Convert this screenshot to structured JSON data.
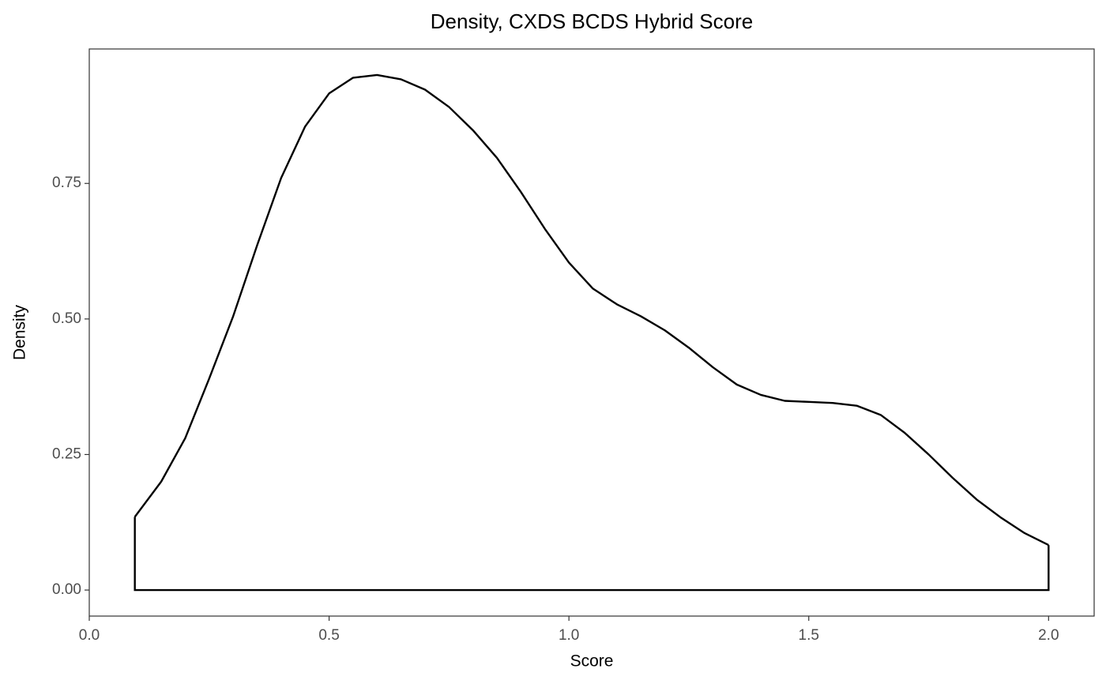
{
  "chart_data": {
    "type": "density",
    "title": "Density, CXDS BCDS Hybrid Score",
    "x_label": "Score",
    "y_label": "Density",
    "x": [
      0.095,
      0.15,
      0.2,
      0.25,
      0.3,
      0.35,
      0.4,
      0.45,
      0.5,
      0.55,
      0.6,
      0.65,
      0.7,
      0.75,
      0.8,
      0.85,
      0.9,
      0.95,
      1.0,
      1.05,
      1.1,
      1.15,
      1.2,
      1.25,
      1.3,
      1.35,
      1.4,
      1.45,
      1.5,
      1.55,
      1.6,
      1.65,
      1.7,
      1.75,
      1.8,
      1.85,
      1.9,
      1.95,
      2.0
    ],
    "values": [
      0.135,
      0.2,
      0.28,
      0.39,
      0.505,
      0.636,
      0.76,
      0.855,
      0.916,
      0.945,
      0.95,
      0.942,
      0.923,
      0.891,
      0.848,
      0.797,
      0.734,
      0.666,
      0.604,
      0.556,
      0.527,
      0.505,
      0.479,
      0.447,
      0.411,
      0.379,
      0.36,
      0.349,
      0.347,
      0.345,
      0.34,
      0.323,
      0.29,
      0.25,
      0.207,
      0.167,
      0.134,
      0.105,
      0.083
    ],
    "color": "#000000",
    "xlim": [
      0,
      2.095
    ],
    "ylim": [
      -0.048,
      0.998
    ],
    "xticks": [
      {
        "value": 0,
        "label": "0.0"
      },
      0.5,
      {
        "value": 1,
        "label": "1.0"
      },
      1.5,
      {
        "value": 2,
        "label": "2.0"
      }
    ],
    "yticks": [
      {
        "value": 0,
        "label": "0.00"
      },
      0.25,
      {
        "value": 0.5,
        "label": "0.50"
      },
      0.75
    ],
    "grid": false
  }
}
